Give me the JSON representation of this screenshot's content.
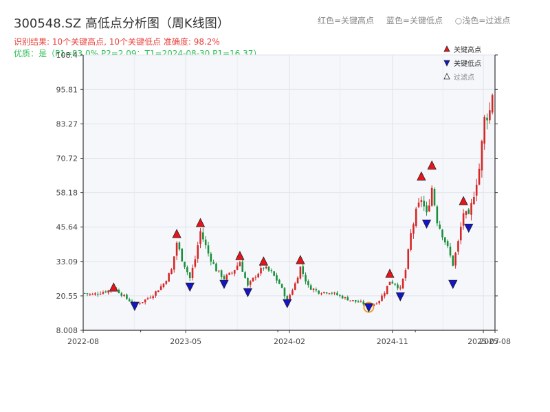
{
  "header": {
    "title": "300548.SZ 高低点分析图（周K线图）",
    "result_line": "识别结果: 10个关键高点, 10个关键低点   准确度: 98.2%",
    "quality_line": "优质：是（P1=83.0%  P2=2.09；T1=2024-08-30 P1=16.37）"
  },
  "top_legend": {
    "red": "红色=关键高点",
    "blue": "蓝色=关键低点",
    "light": "○浅色=过滤点"
  },
  "colors": {
    "up": "#d62728",
    "down": "#1a8f3c",
    "high_marker": "#e8141a",
    "low_marker": "#1414c8",
    "filtered_ring": "#f0a030",
    "plot_bg": "#f5f7fa"
  },
  "chart_data": {
    "type": "candlestick",
    "title": "300548.SZ 高低点分析图（周K线图）",
    "x_tick_labels": [
      "2022-08",
      "2023-05",
      "2024-02",
      "2024-11",
      "2025-07",
      "2025-08"
    ],
    "x_tick_dates": [
      "2022-08-01",
      "2023-05-01",
      "2024-02-01",
      "2024-11-01",
      "2025-07-01",
      "2025-08-01"
    ],
    "x_range": [
      "2022-08-01",
      "2025-08-01"
    ],
    "y_ticks": [
      8.008,
      20.55,
      33.09,
      45.64,
      58.18,
      70.72,
      83.27,
      95.81,
      108.4
    ],
    "ylim": [
      8.008,
      108.4
    ],
    "grid": true,
    "series_shape": [
      [
        "2022-08-05",
        21.5
      ],
      [
        "2022-08-26",
        21.0
      ],
      [
        "2022-09-16",
        21.8
      ],
      [
        "2022-10-07",
        22.5
      ],
      [
        "2022-10-21",
        23.5
      ],
      [
        "2022-11-04",
        22.0
      ],
      [
        "2022-11-25",
        19.5
      ],
      [
        "2022-12-16",
        17.5
      ],
      [
        "2023-01-06",
        18.5
      ],
      [
        "2023-02-03",
        21.0
      ],
      [
        "2023-03-03",
        25.0
      ],
      [
        "2023-03-24",
        30.0
      ],
      [
        "2023-04-07",
        40.0
      ],
      [
        "2023-04-21",
        34.0
      ],
      [
        "2023-05-12",
        27.0
      ],
      [
        "2023-05-26",
        34.0
      ],
      [
        "2023-06-09",
        44.0
      ],
      [
        "2023-06-30",
        36.0
      ],
      [
        "2023-07-21",
        30.0
      ],
      [
        "2023-08-11",
        27.0
      ],
      [
        "2023-09-01",
        29.0
      ],
      [
        "2023-09-22",
        33.0
      ],
      [
        "2023-10-13",
        24.0
      ],
      [
        "2023-11-03",
        28.0
      ],
      [
        "2023-11-24",
        31.0
      ],
      [
        "2023-12-15",
        29.0
      ],
      [
        "2024-01-05",
        25.0
      ],
      [
        "2024-01-26",
        19.0
      ],
      [
        "2024-02-16",
        25.0
      ],
      [
        "2024-03-01",
        31.0
      ],
      [
        "2024-03-22",
        24.0
      ],
      [
        "2024-04-19",
        22.0
      ],
      [
        "2024-05-17",
        22.0
      ],
      [
        "2024-06-14",
        20.5
      ],
      [
        "2024-07-12",
        19.0
      ],
      [
        "2024-08-09",
        18.0
      ],
      [
        "2024-08-30",
        17.0
      ],
      [
        "2024-09-13",
        17.5
      ],
      [
        "2024-09-27",
        19.0
      ],
      [
        "2024-10-11",
        22.0
      ],
      [
        "2024-10-25",
        26.0
      ],
      [
        "2024-11-08",
        25.0
      ],
      [
        "2024-11-22",
        23.0
      ],
      [
        "2024-12-06",
        30.0
      ],
      [
        "2024-12-20",
        43.0
      ],
      [
        "2025-01-03",
        51.0
      ],
      [
        "2025-01-17",
        56.0
      ],
      [
        "2025-01-31",
        50.0
      ],
      [
        "2025-02-14",
        60.0
      ],
      [
        "2025-02-28",
        48.0
      ],
      [
        "2025-03-14",
        43.0
      ],
      [
        "2025-03-28",
        38.0
      ],
      [
        "2025-04-11",
        32.0
      ],
      [
        "2025-04-25",
        40.0
      ],
      [
        "2025-05-09",
        51.0
      ],
      [
        "2025-05-23",
        49.0
      ],
      [
        "2025-06-06",
        58.0
      ],
      [
        "2025-06-20",
        67.0
      ],
      [
        "2025-07-04",
        85.0
      ],
      [
        "2025-07-18",
        88.0
      ],
      [
        "2025-07-25",
        95.0
      ]
    ],
    "key_highs": [
      {
        "date": "2022-10-21",
        "value": 23.5
      },
      {
        "date": "2023-04-07",
        "value": 43.0
      },
      {
        "date": "2023-06-09",
        "value": 47.0
      },
      {
        "date": "2023-09-22",
        "value": 35.0
      },
      {
        "date": "2023-11-24",
        "value": 33.0
      },
      {
        "date": "2024-03-01",
        "value": 33.5
      },
      {
        "date": "2024-10-25",
        "value": 28.5
      },
      {
        "date": "2025-01-17",
        "value": 64.0
      },
      {
        "date": "2025-02-14",
        "value": 68.0
      },
      {
        "date": "2025-05-09",
        "value": 55.0
      }
    ],
    "key_lows": [
      {
        "date": "2022-12-16",
        "value": 17.0
      },
      {
        "date": "2023-05-12",
        "value": 24.0
      },
      {
        "date": "2023-08-11",
        "value": 25.0
      },
      {
        "date": "2023-10-13",
        "value": 22.0
      },
      {
        "date": "2024-01-26",
        "value": 18.0
      },
      {
        "date": "2024-08-30",
        "value": 16.5
      },
      {
        "date": "2024-11-22",
        "value": 20.5
      },
      {
        "date": "2025-01-31",
        "value": 47.0
      },
      {
        "date": "2025-04-11",
        "value": 25.0
      },
      {
        "date": "2025-05-23",
        "value": 45.5
      }
    ],
    "filtered_points": [
      {
        "date": "2024-08-30",
        "value": 16.4
      }
    ],
    "legend": {
      "high": "关键高点",
      "low": "关键低点",
      "filtered": "过滤点",
      "placement": "top-right"
    }
  }
}
